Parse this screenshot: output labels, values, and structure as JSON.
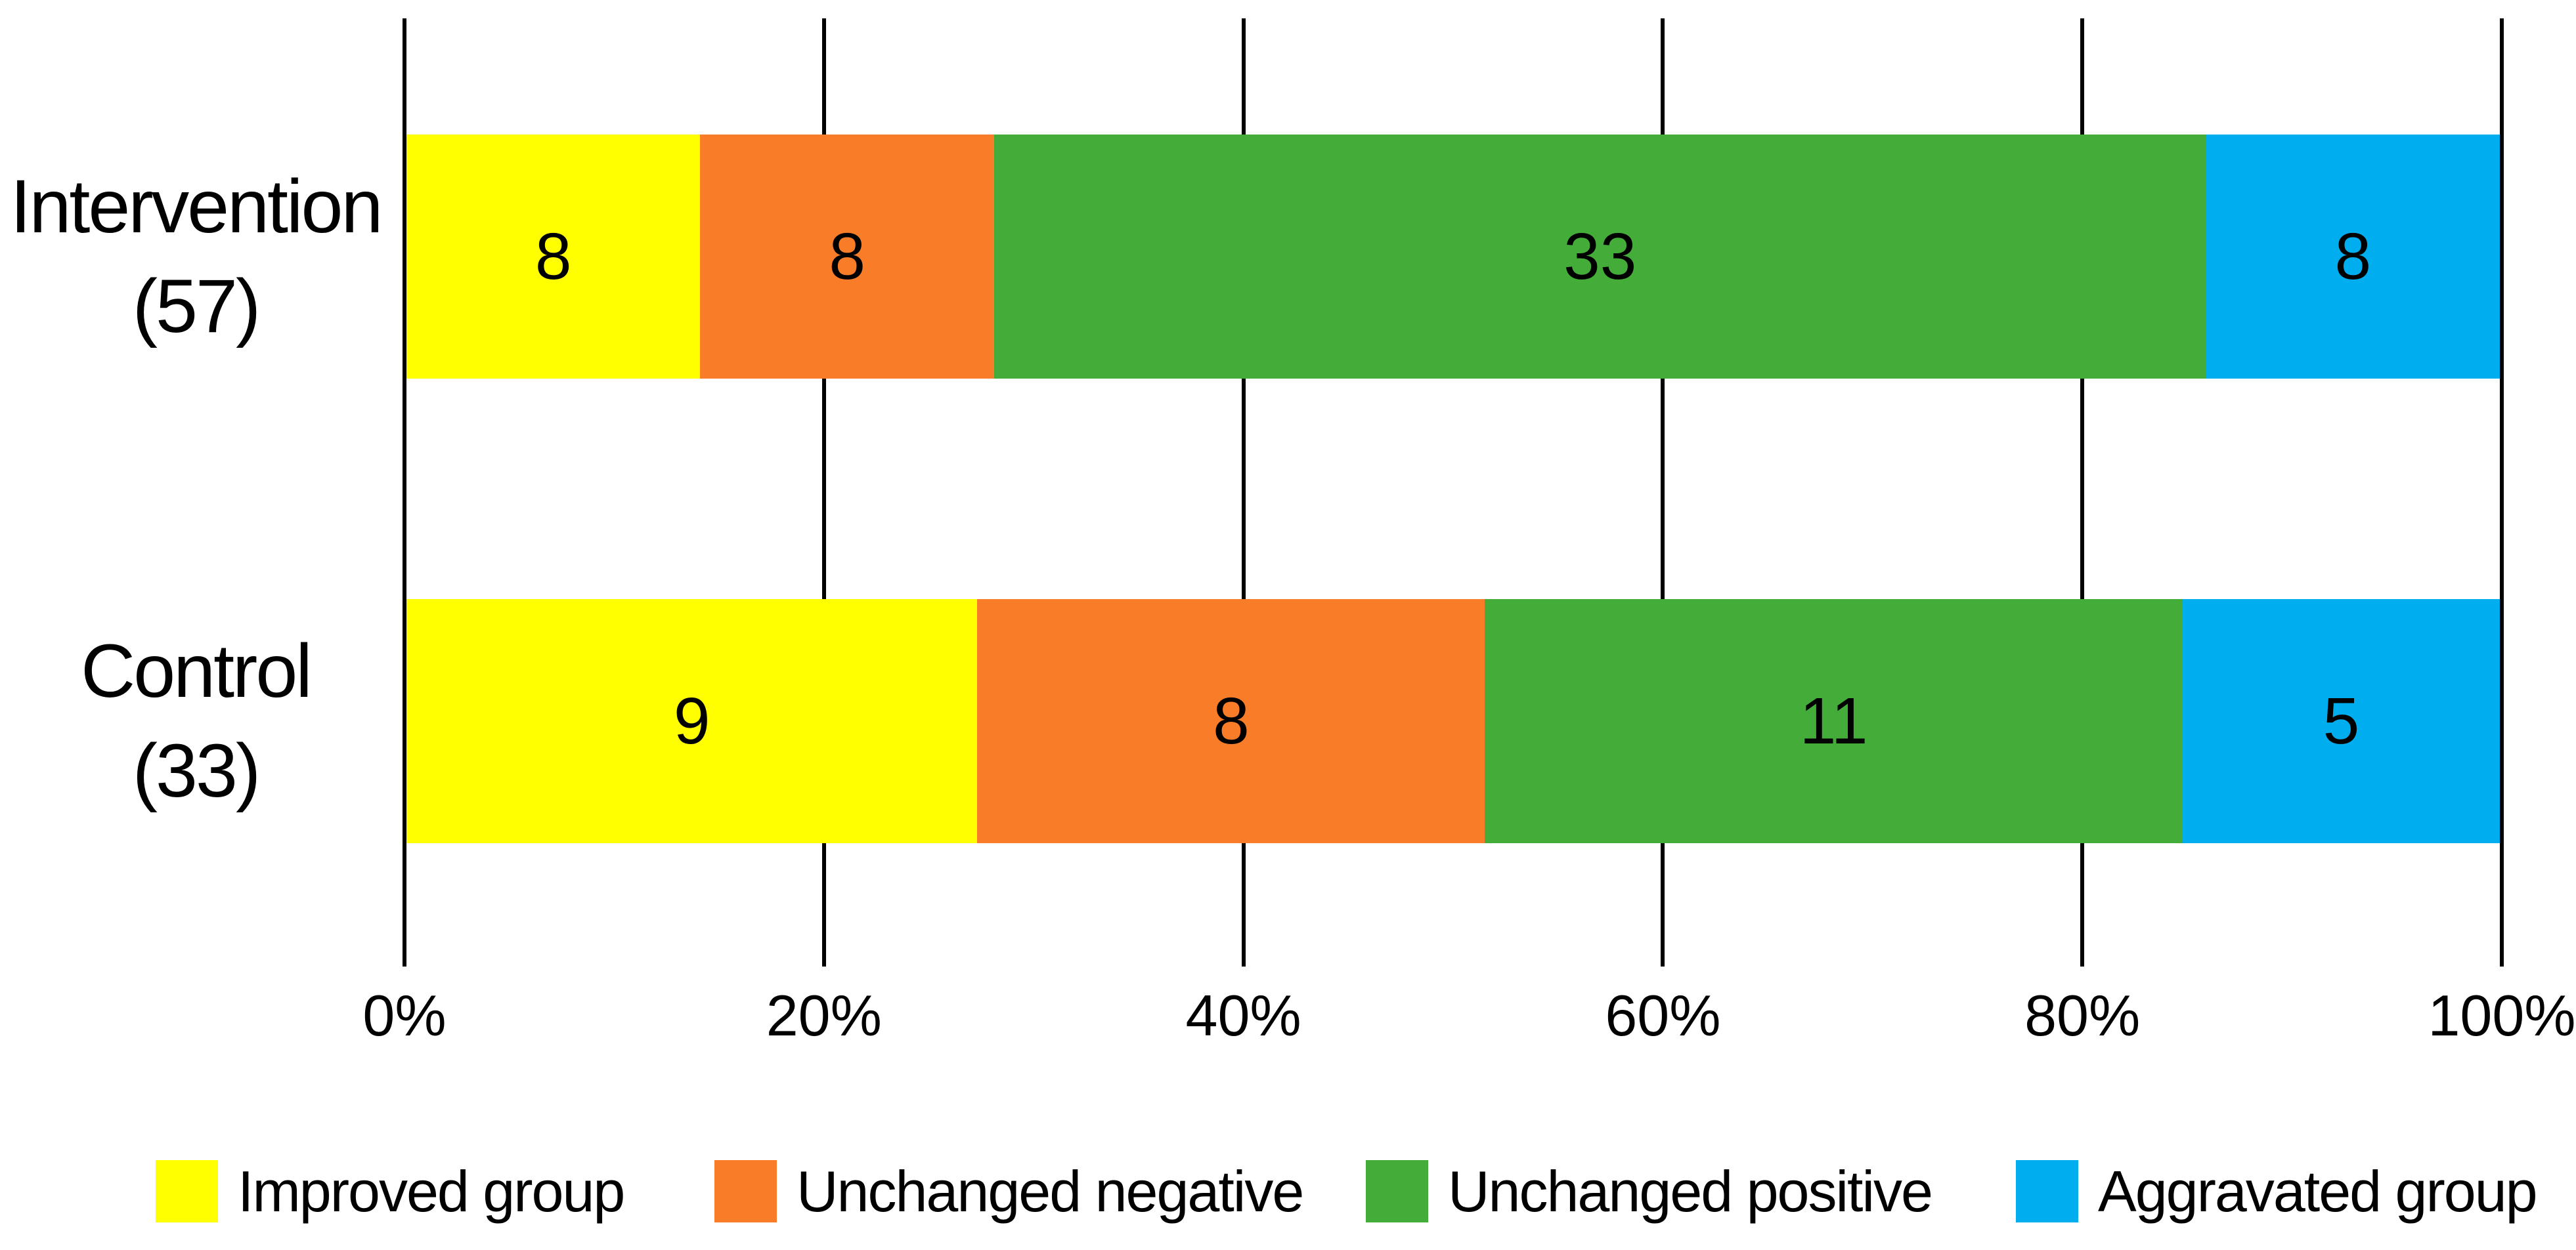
{
  "chart_data": {
    "type": "bar",
    "orientation": "horizontal",
    "stacked": true,
    "title": "",
    "xlabel": "",
    "ylabel": "",
    "x_axis_unit": "percent of group total",
    "xlim": [
      0,
      100
    ],
    "x_ticks": [
      "0%",
      "20%",
      "40%",
      "60%",
      "80%",
      "100%"
    ],
    "gridlines": true,
    "legend_position": "bottom",
    "categories": [
      "Intervention (57)",
      "Control (33)"
    ],
    "categories_display": [
      [
        "Intervention",
        "(57)"
      ],
      [
        "Control",
        "(33)"
      ]
    ],
    "category_totals": [
      57,
      33
    ],
    "series": [
      {
        "name": "Improved group",
        "color": "#FFFF00",
        "values": [
          8,
          9
        ]
      },
      {
        "name": "Unchanged negative",
        "color": "#F97C28",
        "values": [
          8,
          8
        ]
      },
      {
        "name": "Unchanged positive",
        "color": "#44AD39",
        "values": [
          33,
          11
        ]
      },
      {
        "name": "Aggravated group",
        "color": "#00AEEF",
        "values": [
          8,
          5
        ]
      }
    ],
    "colors": {
      "background": "#FFFFFF",
      "text": "#000000",
      "gridline": "#000000"
    }
  }
}
